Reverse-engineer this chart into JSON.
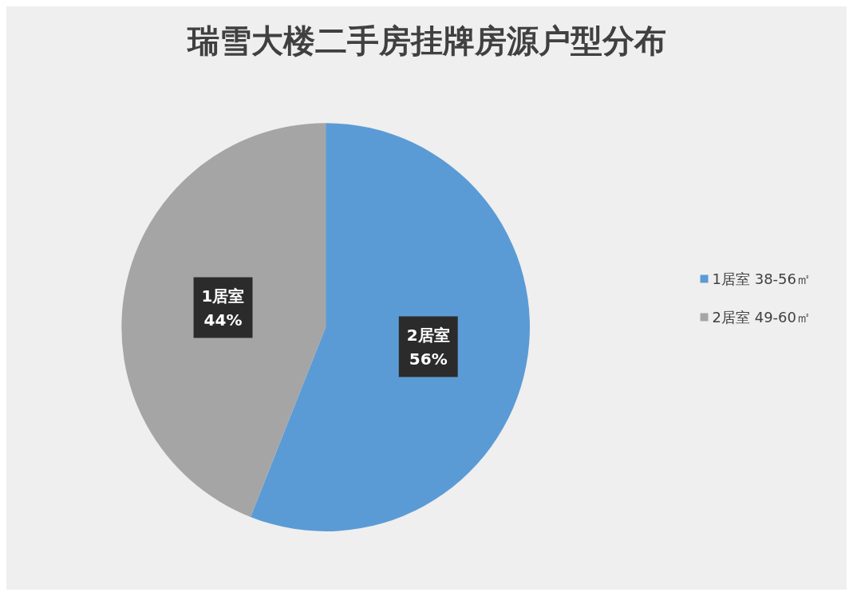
{
  "chart_data": {
    "type": "pie",
    "title": "瑞雪大楼二手房挂牌房源户型分布",
    "categories": [
      "1居室 38-56㎡",
      "2居室 49-60㎡"
    ],
    "values": [
      56,
      44
    ],
    "colors": [
      "#5b9bd5",
      "#a5a5a5"
    ],
    "value_labels": [
      "2居室\n56%",
      "1居室\n44%"
    ],
    "legend": "right"
  }
}
